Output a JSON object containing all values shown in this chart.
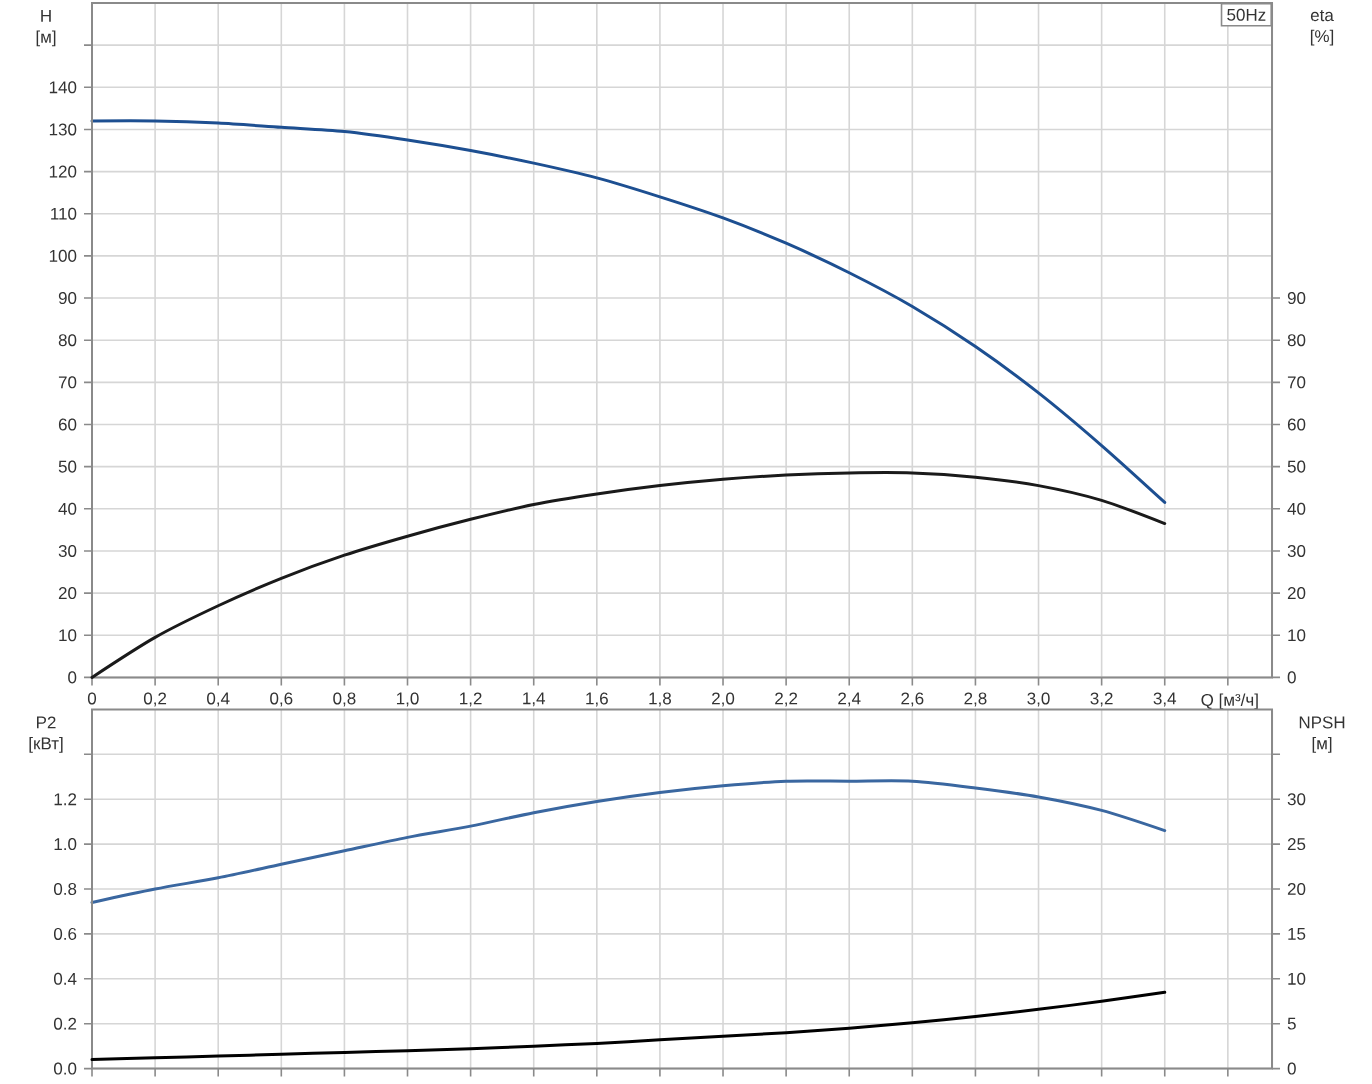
{
  "chart_data": [
    {
      "type": "line",
      "ylabel": "H [м]",
      "y2label": "eta [%]",
      "xlabel": "Q [м³/ч]",
      "annotations": [
        "50Hz"
      ],
      "x": [
        0,
        0.2,
        0.4,
        0.6,
        0.8,
        1.0,
        1.2,
        1.4,
        1.6,
        1.8,
        2.0,
        2.2,
        2.4,
        2.6,
        2.8,
        3.0,
        3.2,
        3.4
      ],
      "series": [
        {
          "color": "#1d4f91",
          "values": [
            132,
            132,
            131.5,
            130.5,
            129.5,
            127.5,
            125,
            122,
            118.5,
            114,
            109,
            103,
            96,
            88,
            78.5,
            67.5,
            55,
            41.5
          ]
        },
        {
          "color": "#1a1a1a",
          "axis": "y2",
          "values": [
            0,
            9.5,
            17,
            23.5,
            29,
            33.5,
            37.5,
            41,
            43.5,
            45.5,
            47,
            48,
            48.5,
            48.5,
            47.5,
            45.5,
            42,
            36.5
          ]
        }
      ],
      "xlim": [
        0,
        3.74
      ],
      "xticks": [
        0,
        {
          "value": 0.2,
          "label": "0,2"
        },
        {
          "value": 0.4,
          "label": "0,4"
        },
        {
          "value": 0.6,
          "label": "0,6"
        },
        {
          "value": 0.8,
          "label": "0,8"
        },
        {
          "value": 1.0,
          "label": "1,0"
        },
        {
          "value": 1.2,
          "label": "1,2"
        },
        {
          "value": 1.4,
          "label": "1,4"
        },
        {
          "value": 1.6,
          "label": "1,6"
        },
        {
          "value": 1.8,
          "label": "1,8"
        },
        {
          "value": 2.0,
          "label": "2,0"
        },
        {
          "value": 2.2,
          "label": "2,2"
        },
        {
          "value": 2.4,
          "label": "2,4"
        },
        {
          "value": 2.6,
          "label": "2,6"
        },
        {
          "value": 2.8,
          "label": "2,8"
        },
        {
          "value": 3.0,
          "label": "3,0"
        },
        {
          "value": 3.2,
          "label": "3,2"
        },
        {
          "value": 3.4,
          "label": "3,4"
        },
        {
          "value": 3.6,
          "label": null
        }
      ],
      "ylim": [
        0,
        160
      ],
      "yticks": [
        0,
        10,
        20,
        30,
        40,
        50,
        60,
        70,
        80,
        90,
        100,
        110,
        120,
        130,
        140,
        {
          "value": 150,
          "label": null
        }
      ],
      "y2lim": [
        0,
        160
      ],
      "y2ticks": [
        0,
        10,
        20,
        30,
        40,
        50,
        60,
        70,
        80,
        90
      ],
      "grid": true
    },
    {
      "type": "line",
      "ylabel": "P2 [кВт]",
      "y2label": "NPSH [м]",
      "x": [
        0,
        0.2,
        0.4,
        0.6,
        0.8,
        1.0,
        1.2,
        1.4,
        1.6,
        1.8,
        2.0,
        2.2,
        2.4,
        2.6,
        2.8,
        3.0,
        3.2,
        3.4
      ],
      "series": [
        {
          "color": "#3a67a0",
          "values": [
            0.74,
            0.8,
            0.85,
            0.91,
            0.97,
            1.03,
            1.08,
            1.14,
            1.19,
            1.23,
            1.26,
            1.28,
            1.28,
            1.28,
            1.25,
            1.21,
            1.15,
            1.06
          ]
        },
        {
          "color": "#000000",
          "axis": "y2",
          "values": [
            1.0,
            1.2,
            1.4,
            1.6,
            1.8,
            2.0,
            2.2,
            2.5,
            2.8,
            3.2,
            3.6,
            4.0,
            4.5,
            5.1,
            5.8,
            6.6,
            7.5,
            8.5
          ]
        }
      ],
      "xlim": [
        0,
        3.74
      ],
      "xticks": [
        0,
        0.2,
        0.4,
        0.6,
        0.8,
        1.0,
        1.2,
        1.4,
        1.6,
        1.8,
        2.0,
        2.2,
        2.4,
        2.6,
        2.8,
        3.0,
        3.2,
        3.4,
        3.6
      ],
      "ylim": [
        0,
        1.6
      ],
      "yticks": [
        {
          "value": 0,
          "label": "0.0"
        },
        0.2,
        0.4,
        0.6,
        0.8,
        {
          "value": 1.0,
          "label": "1.0"
        },
        1.2,
        {
          "value": 1.4,
          "label": null
        }
      ],
      "y2lim": [
        0,
        40
      ],
      "y2ticks": [
        0,
        5,
        10,
        15,
        20,
        25,
        30,
        {
          "value": 35,
          "label": null
        }
      ],
      "grid": true,
      "tick_labels": "y"
    }
  ]
}
